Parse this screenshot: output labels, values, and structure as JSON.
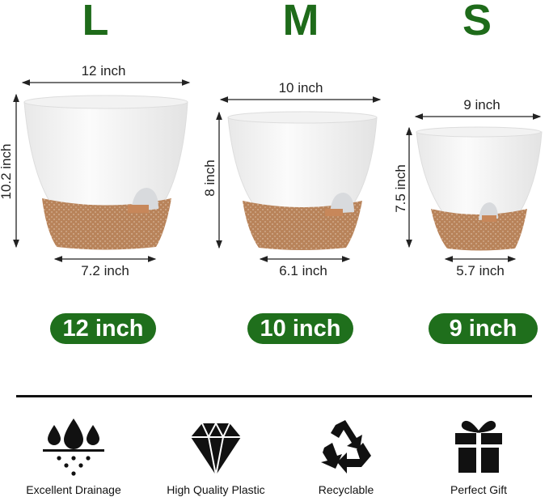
{
  "sizes": [
    {
      "letter": "L",
      "top_width": "12 inch",
      "height": "10.2 inch",
      "bottom_width": "7.2 inch",
      "badge": "12 inch"
    },
    {
      "letter": "M",
      "top_width": "10 inch",
      "height": "8 inch",
      "bottom_width": "6.1 inch",
      "badge": "10 inch"
    },
    {
      "letter": "S",
      "top_width": "9 inch",
      "height": "7.5 inch",
      "bottom_width": "5.7 inch",
      "badge": "9 inch"
    }
  ],
  "features": [
    {
      "icon": "water-drops-drainage-icon",
      "label": "Excellent Drainage"
    },
    {
      "icon": "diamond-icon",
      "label": "High Quality Plastic"
    },
    {
      "icon": "recycle-icon",
      "label": "Recyclable"
    },
    {
      "icon": "gift-icon",
      "label": "Perfect Gift"
    }
  ],
  "colors": {
    "accent_green": "#1f6f1c",
    "pot_white": "#f7f7f7",
    "pot_base": "#b8835a"
  }
}
